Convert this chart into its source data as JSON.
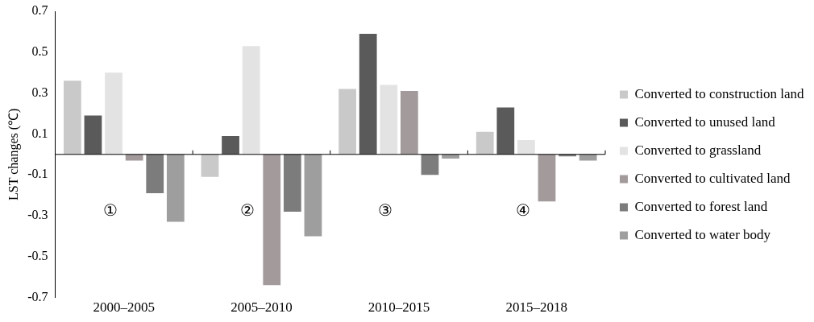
{
  "chart_data": {
    "type": "bar",
    "ylabel": "LST changes (℃)",
    "categories": [
      "2000–2005",
      "2005–2010",
      "2010–2015",
      "2015–2018"
    ],
    "series": [
      {
        "name": "Converted to construction land",
        "color": "#c9c9c9",
        "values": [
          0.36,
          -0.11,
          0.32,
          0.11
        ]
      },
      {
        "name": "Converted to unused land",
        "color": "#5a5a5a",
        "values": [
          0.19,
          0.09,
          0.59,
          0.23
        ]
      },
      {
        "name": "Converted to grassland",
        "color": "#e3e3e3",
        "values": [
          0.4,
          0.53,
          0.34,
          0.07
        ]
      },
      {
        "name": "Converted to cultivated land",
        "color": "#a39b9b",
        "values": [
          -0.03,
          -0.64,
          0.31,
          -0.23
        ]
      },
      {
        "name": "Converted to forest land",
        "color": "#7c7c7c",
        "values": [
          -0.19,
          -0.28,
          -0.1,
          -0.01
        ]
      },
      {
        "name": "Converted to water body",
        "color": "#9e9e9e",
        "values": [
          -0.33,
          -0.4,
          -0.02,
          -0.03
        ]
      }
    ],
    "ylim": [
      -0.7,
      0.7
    ],
    "yticks": [
      -0.7,
      -0.5,
      -0.3,
      -0.1,
      0.1,
      0.3,
      0.5,
      0.7
    ],
    "grid": false,
    "legend": "right",
    "annotations": [
      "①",
      "②",
      "③",
      "④"
    ]
  }
}
